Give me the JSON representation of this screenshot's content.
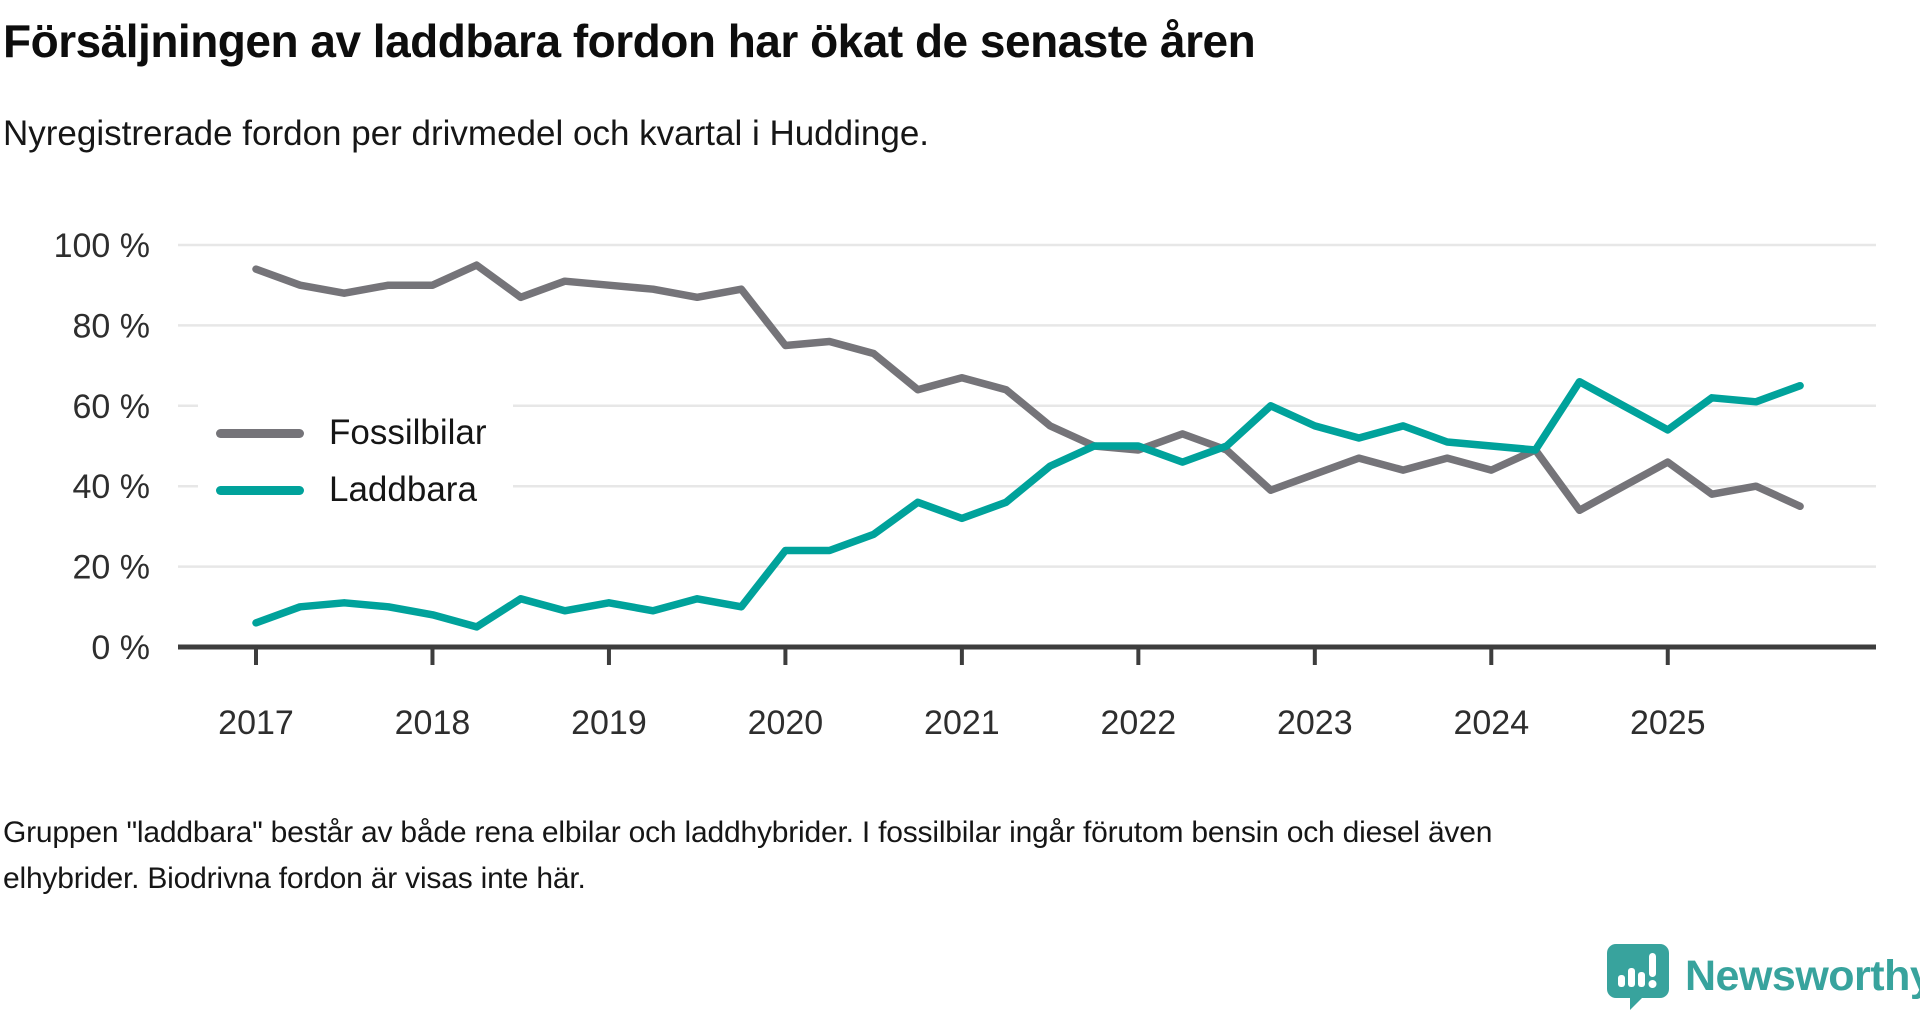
{
  "title": "Försäljningen av laddbara fordon har ökat de senaste åren",
  "subtitle": "Nyregistrerade fordon per drivmedel och kvartal i Huddinge.",
  "footnote": "Gruppen \"laddbara\" består av både rena elbilar och laddhybrider. I fossilbilar ingår förutom bensin och diesel även elhybrider. Biodrivna fordon är visas inte här.",
  "logo": {
    "name": "Newsworthy",
    "icon": "bar-chart-speech-bubble-icon"
  },
  "colors": {
    "brand": "#38a39d",
    "fossil": "#757479",
    "laddbara": "#00a29b",
    "grid": "#e7e7e7",
    "axis": "#3d3d3d",
    "text": "#1a1a1a"
  },
  "chart_data": {
    "type": "line",
    "title": "Försäljningen av laddbara fordon har ökat de senaste åren",
    "subtitle": "Nyregistrerade fordon per drivmedel och kvartal i Huddinge.",
    "x_unit": "quarter",
    "grid": true,
    "legend_position": "inside-left",
    "ylim": [
      0,
      100
    ],
    "y_tick_values": [
      0,
      20,
      40,
      60,
      80,
      100
    ],
    "y_tick_labels": [
      "0 %",
      "20 %",
      "40 %",
      "60 %",
      "80 %",
      "100 %"
    ],
    "x_year_ticks": [
      "2017",
      "2018",
      "2019",
      "2020",
      "2021",
      "2022",
      "2023",
      "2024",
      "2025"
    ],
    "x_quarters": [
      "2017 Q1",
      "2017 Q2",
      "2017 Q3",
      "2017 Q4",
      "2018 Q1",
      "2018 Q2",
      "2018 Q3",
      "2018 Q4",
      "2019 Q1",
      "2019 Q2",
      "2019 Q3",
      "2019 Q4",
      "2020 Q1",
      "2020 Q2",
      "2020 Q3",
      "2020 Q4",
      "2021 Q1",
      "2021 Q2",
      "2021 Q3",
      "2021 Q4",
      "2022 Q1",
      "2022 Q2",
      "2022 Q3",
      "2022 Q4",
      "2023 Q1",
      "2023 Q2",
      "2023 Q3",
      "2023 Q4",
      "2024 Q1",
      "2024 Q2",
      "2024 Q3",
      "2024 Q4",
      "2025 Q1",
      "2025 Q2",
      "2025 Q3",
      "2025 Q4"
    ],
    "series": [
      {
        "name": "Fossilbilar",
        "color": "#757479",
        "values": [
          94,
          90,
          88,
          90,
          90,
          95,
          87,
          91,
          90,
          89,
          87,
          89,
          75,
          76,
          73,
          64,
          67,
          64,
          55,
          50,
          49,
          53,
          49,
          39,
          43,
          47,
          44,
          47,
          44,
          49,
          34,
          40,
          46,
          38,
          40,
          35
        ]
      },
      {
        "name": "Laddbara",
        "color": "#00a29b",
        "values": [
          6,
          10,
          11,
          10,
          8,
          5,
          12,
          9,
          11,
          9,
          12,
          10,
          24,
          24,
          28,
          36,
          32,
          36,
          45,
          50,
          50,
          46,
          50,
          60,
          55,
          52,
          55,
          51,
          50,
          49,
          66,
          60,
          54,
          62,
          61,
          65
        ]
      }
    ]
  }
}
